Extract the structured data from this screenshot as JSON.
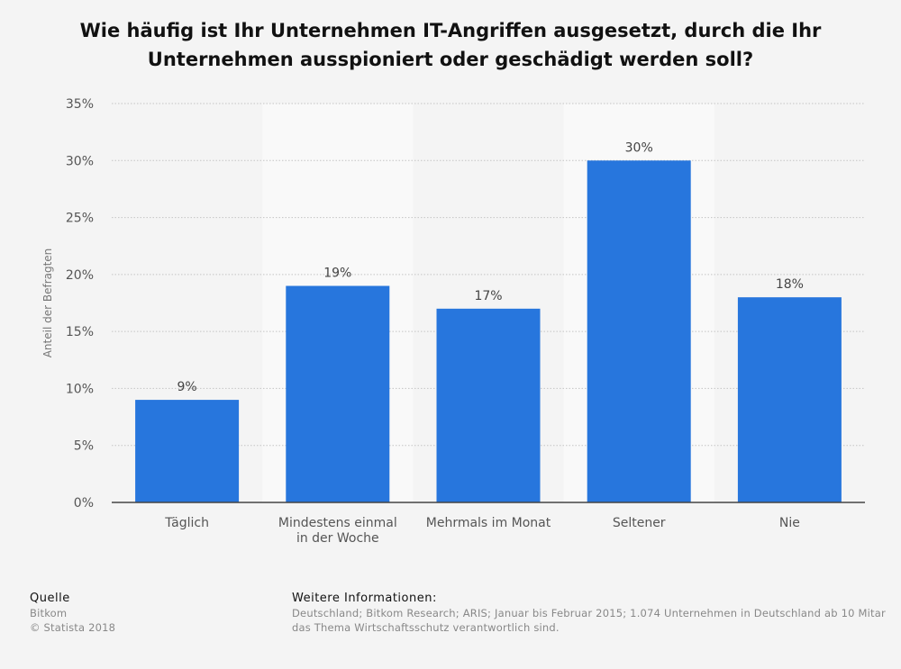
{
  "chart_data": {
    "type": "bar",
    "title": "Wie häufig ist Ihr Unternehmen IT-Angriffen ausgesetzt, durch die Ihr Unternehmen ausspioniert oder geschädigt werden soll?",
    "ylabel": "Anteil der Befragten",
    "xlabel": "",
    "categories": [
      [
        "Täglich"
      ],
      [
        "Mindestens einmal",
        "in der Woche"
      ],
      [
        "Mehrmals im Monat"
      ],
      [
        "Seltener"
      ],
      [
        "Nie"
      ]
    ],
    "values": [
      9,
      19,
      17,
      30,
      18
    ],
    "value_labels": [
      "9%",
      "19%",
      "17%",
      "30%",
      "18%"
    ],
    "ylim": [
      0,
      35
    ],
    "yticks": [
      0,
      5,
      10,
      15,
      20,
      25,
      30,
      35
    ],
    "ytick_labels": [
      "0%",
      "5%",
      "10%",
      "15%",
      "20%",
      "25%",
      "30%",
      "35%"
    ],
    "grid": true,
    "bar_color": "#2776dd",
    "alt_band_color": "#f9f9f9"
  },
  "footer": {
    "source_heading": "Quelle",
    "source_lines": [
      "Bitkom",
      "© Statista 2018"
    ],
    "info_heading": "Weitere Informationen:",
    "info_lines": [
      "Deutschland; Bitkom Research; ARIS; Januar bis Februar 2015; 1.074 Unternehmen in Deutschland ab 10 Mitar",
      "das Thema Wirtschaftsschutz verantwortlich sind."
    ]
  }
}
